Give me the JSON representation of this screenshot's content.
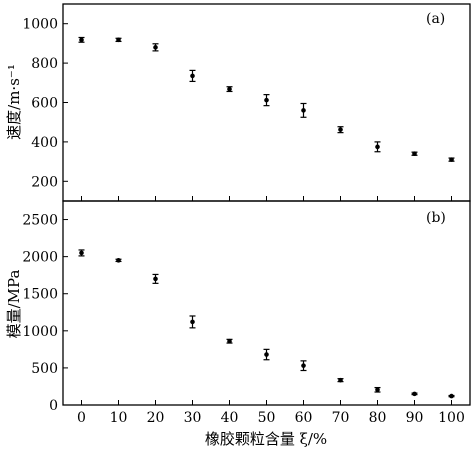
{
  "chart_data": [
    {
      "type": "scatter",
      "panel_label": "(a)",
      "ylabel": "速度/m·s⁻¹",
      "ylim": [
        100,
        1100
      ],
      "yticks": [
        200,
        400,
        600,
        800,
        1000
      ],
      "xlim": [
        -5,
        105
      ],
      "grid": false,
      "series": [
        {
          "x": [
            0,
            10,
            20,
            30,
            40,
            50,
            60,
            70,
            80,
            90,
            100
          ],
          "y": [
            918,
            918,
            880,
            735,
            668,
            612,
            560,
            462,
            375,
            340,
            310
          ],
          "error": [
            12,
            8,
            18,
            28,
            12,
            28,
            35,
            15,
            25,
            8,
            8
          ]
        }
      ]
    },
    {
      "type": "scatter",
      "panel_label": "(b)",
      "ylabel": "模量/MPa",
      "xlabel": "橡胶颗粒含量 ξ/%",
      "ylim": [
        0,
        2750
      ],
      "yticks": [
        0,
        500,
        1000,
        1500,
        2000,
        2500
      ],
      "xlim": [
        -5,
        105
      ],
      "xticks": [
        0,
        10,
        20,
        30,
        40,
        50,
        60,
        70,
        80,
        90,
        100
      ],
      "grid": false,
      "series": [
        {
          "x": [
            0,
            10,
            20,
            30,
            40,
            50,
            60,
            70,
            80,
            90,
            100
          ],
          "y": [
            2050,
            1950,
            1700,
            1120,
            860,
            680,
            530,
            335,
            205,
            150,
            120
          ],
          "error": [
            40,
            15,
            60,
            80,
            25,
            70,
            65,
            20,
            30,
            10,
            8
          ]
        }
      ]
    }
  ]
}
